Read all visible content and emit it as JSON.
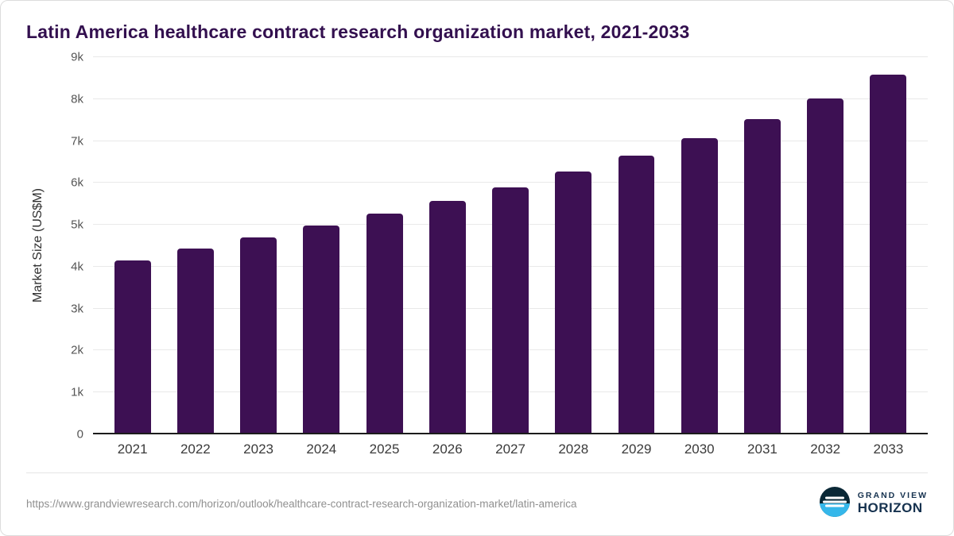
{
  "title": "Latin America healthcare contract research organization market, 2021-2033",
  "footer": {
    "url": "https://www.grandviewresearch.com/horizon/outlook/healthcare-contract-research-organization-market/latin-america",
    "brand_top": "GRAND VIEW",
    "brand_bottom": "HORIZON"
  },
  "colors": {
    "bar": "#3d1053",
    "title": "#33104f",
    "grid": "#e9e9e9",
    "axis": "#1c1c1c",
    "logo_dark": "#0a2836",
    "logo_accent": "#35b7ea",
    "brand_text": "#16324f"
  },
  "chart_data": {
    "type": "bar",
    "title": "Latin America healthcare contract research organization market, 2021-2033",
    "categories": [
      "2021",
      "2022",
      "2023",
      "2024",
      "2025",
      "2026",
      "2027",
      "2028",
      "2029",
      "2030",
      "2031",
      "2032",
      "2033"
    ],
    "values": [
      4150,
      4430,
      4700,
      4980,
      5270,
      5570,
      5900,
      6270,
      6650,
      7070,
      7520,
      8010,
      8580
    ],
    "xlabel": "",
    "ylabel": "Market Size (US$M)",
    "ylim": [
      0,
      9000
    ],
    "ytick_step": 1000,
    "yticks": [
      "0",
      "1k",
      "2k",
      "3k",
      "4k",
      "5k",
      "6k",
      "7k",
      "8k",
      "9k"
    ],
    "grid": true,
    "legend": false,
    "bar_color": "#3d1053"
  }
}
